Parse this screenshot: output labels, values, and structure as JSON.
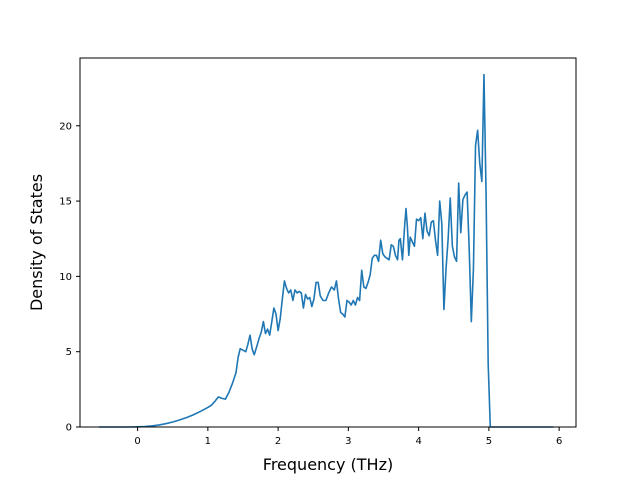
{
  "chart_data": {
    "type": "line",
    "title": "",
    "xlabel": "Frequency (THz)",
    "ylabel": "Density of States",
    "xlim": [
      -0.82,
      6.24
    ],
    "ylim": [
      0,
      24.5
    ],
    "grid": false,
    "legend": "none",
    "xticks": [
      0,
      1,
      2,
      3,
      4,
      5,
      6
    ],
    "yticks": [
      0,
      5,
      10,
      15,
      20
    ],
    "x_tick_labels": [
      "0",
      "1",
      "2",
      "3",
      "4",
      "5",
      "6"
    ],
    "y_tick_labels": [
      "0",
      "5",
      "10",
      "15",
      "20"
    ],
    "series": [
      {
        "color": "#1f77b4",
        "points": [
          [
            -0.55,
            0.0
          ],
          [
            -0.3,
            0.0
          ],
          [
            -0.1,
            0.0
          ],
          [
            0.0,
            0.01
          ],
          [
            0.1,
            0.03
          ],
          [
            0.2,
            0.07
          ],
          [
            0.3,
            0.13
          ],
          [
            0.4,
            0.22
          ],
          [
            0.5,
            0.33
          ],
          [
            0.6,
            0.47
          ],
          [
            0.7,
            0.63
          ],
          [
            0.8,
            0.82
          ],
          [
            0.9,
            1.05
          ],
          [
            1.0,
            1.3
          ],
          [
            1.05,
            1.45
          ],
          [
            1.1,
            1.7
          ],
          [
            1.15,
            2.0
          ],
          [
            1.2,
            1.9
          ],
          [
            1.25,
            1.85
          ],
          [
            1.3,
            2.3
          ],
          [
            1.35,
            2.9
          ],
          [
            1.4,
            3.6
          ],
          [
            1.43,
            4.6
          ],
          [
            1.46,
            5.2
          ],
          [
            1.5,
            5.1
          ],
          [
            1.54,
            5.0
          ],
          [
            1.57,
            5.5
          ],
          [
            1.6,
            6.1
          ],
          [
            1.63,
            5.2
          ],
          [
            1.66,
            4.8
          ],
          [
            1.7,
            5.4
          ],
          [
            1.73,
            5.9
          ],
          [
            1.76,
            6.3
          ],
          [
            1.79,
            7.0
          ],
          [
            1.82,
            6.2
          ],
          [
            1.85,
            6.5
          ],
          [
            1.88,
            6.1
          ],
          [
            1.91,
            7.0
          ],
          [
            1.94,
            7.9
          ],
          [
            1.97,
            7.5
          ],
          [
            2.0,
            6.4
          ],
          [
            2.03,
            7.2
          ],
          [
            2.06,
            8.5
          ],
          [
            2.09,
            9.7
          ],
          [
            2.12,
            9.2
          ],
          [
            2.15,
            8.9
          ],
          [
            2.18,
            9.1
          ],
          [
            2.21,
            8.4
          ],
          [
            2.24,
            9.1
          ],
          [
            2.27,
            8.9
          ],
          [
            2.3,
            9.0
          ],
          [
            2.33,
            8.9
          ],
          [
            2.36,
            7.9
          ],
          [
            2.39,
            8.8
          ],
          [
            2.42,
            8.5
          ],
          [
            2.45,
            8.6
          ],
          [
            2.48,
            8.0
          ],
          [
            2.51,
            8.5
          ],
          [
            2.54,
            9.6
          ],
          [
            2.57,
            9.6
          ],
          [
            2.6,
            8.7
          ],
          [
            2.64,
            8.4
          ],
          [
            2.68,
            8.4
          ],
          [
            2.72,
            8.9
          ],
          [
            2.76,
            9.3
          ],
          [
            2.8,
            9.1
          ],
          [
            2.83,
            9.7
          ],
          [
            2.86,
            8.5
          ],
          [
            2.89,
            7.6
          ],
          [
            2.92,
            7.5
          ],
          [
            2.95,
            7.3
          ],
          [
            2.98,
            8.4
          ],
          [
            3.01,
            8.3
          ],
          [
            3.04,
            8.1
          ],
          [
            3.07,
            8.4
          ],
          [
            3.1,
            8.1
          ],
          [
            3.13,
            8.6
          ],
          [
            3.16,
            8.4
          ],
          [
            3.19,
            10.4
          ],
          [
            3.22,
            9.3
          ],
          [
            3.25,
            9.2
          ],
          [
            3.28,
            9.6
          ],
          [
            3.31,
            10.1
          ],
          [
            3.34,
            11.2
          ],
          [
            3.37,
            11.4
          ],
          [
            3.4,
            11.4
          ],
          [
            3.43,
            11.0
          ],
          [
            3.46,
            12.4
          ],
          [
            3.49,
            11.5
          ],
          [
            3.52,
            11.3
          ],
          [
            3.55,
            11.2
          ],
          [
            3.58,
            11.1
          ],
          [
            3.61,
            12.1
          ],
          [
            3.64,
            12.0
          ],
          [
            3.67,
            11.4
          ],
          [
            3.7,
            11.1
          ],
          [
            3.72,
            12.4
          ],
          [
            3.74,
            12.5
          ],
          [
            3.77,
            11.1
          ],
          [
            3.8,
            13.3
          ],
          [
            3.82,
            14.5
          ],
          [
            3.84,
            13.3
          ],
          [
            3.86,
            11.4
          ],
          [
            3.88,
            12.6
          ],
          [
            3.91,
            12.3
          ],
          [
            3.94,
            12.0
          ],
          [
            3.97,
            13.8
          ],
          [
            4.0,
            13.7
          ],
          [
            4.03,
            13.9
          ],
          [
            4.06,
            12.5
          ],
          [
            4.09,
            14.2
          ],
          [
            4.12,
            13.0
          ],
          [
            4.15,
            12.7
          ],
          [
            4.18,
            13.6
          ],
          [
            4.21,
            13.7
          ],
          [
            4.24,
            12.4
          ],
          [
            4.27,
            11.4
          ],
          [
            4.3,
            15.0
          ],
          [
            4.33,
            13.5
          ],
          [
            4.36,
            7.8
          ],
          [
            4.39,
            10.5
          ],
          [
            4.42,
            12.5
          ],
          [
            4.45,
            15.2
          ],
          [
            4.48,
            12.0
          ],
          [
            4.51,
            11.3
          ],
          [
            4.54,
            11.0
          ],
          [
            4.57,
            16.2
          ],
          [
            4.6,
            12.9
          ],
          [
            4.63,
            15.1
          ],
          [
            4.66,
            15.4
          ],
          [
            4.69,
            15.6
          ],
          [
            4.72,
            11.8
          ],
          [
            4.75,
            7.0
          ],
          [
            4.78,
            10.5
          ],
          [
            4.81,
            18.7
          ],
          [
            4.84,
            19.7
          ],
          [
            4.87,
            17.5
          ],
          [
            4.9,
            16.3
          ],
          [
            4.93,
            23.4
          ],
          [
            4.96,
            15.5
          ],
          [
            4.99,
            4.2
          ],
          [
            5.02,
            0.0
          ],
          [
            5.3,
            0.0
          ],
          [
            5.55,
            0.0
          ],
          [
            5.92,
            0.0
          ]
        ]
      }
    ]
  }
}
